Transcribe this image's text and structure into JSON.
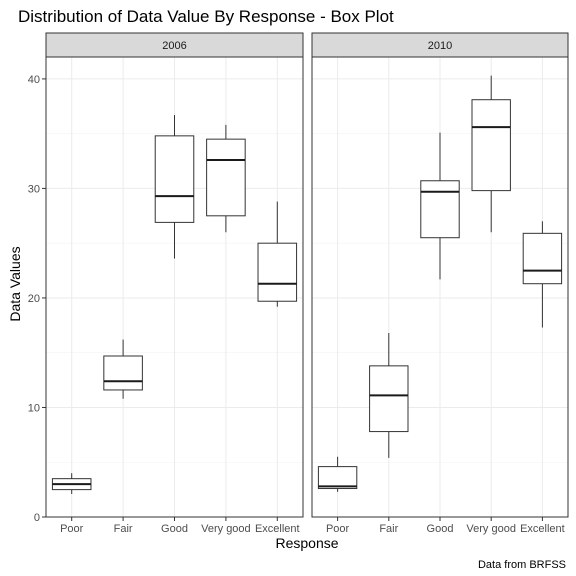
{
  "chart_data": {
    "type": "box",
    "title": "Distribution of Data Value By Response - Box Plot",
    "xlabel": "Response",
    "ylabel": "Data Values",
    "caption": "Data from BRFSS",
    "categories": [
      "Poor",
      "Fair",
      "Good",
      "Very good",
      "Excellent"
    ],
    "ylim": [
      0,
      42
    ],
    "yticks": [
      0,
      10,
      20,
      30,
      40
    ],
    "grid": true,
    "panels": [
      {
        "label": "2006",
        "boxes": [
          {
            "category": "Poor",
            "min": 2.1,
            "q1": 2.5,
            "median": 3.0,
            "q3": 3.5,
            "max": 4.0
          },
          {
            "category": "Fair",
            "min": 10.8,
            "q1": 11.6,
            "median": 12.4,
            "q3": 14.7,
            "max": 16.2
          },
          {
            "category": "Good",
            "min": 23.6,
            "q1": 26.9,
            "median": 29.3,
            "q3": 34.8,
            "max": 36.7
          },
          {
            "category": "Very good",
            "min": 26.0,
            "q1": 27.5,
            "median": 32.6,
            "q3": 34.5,
            "max": 35.8
          },
          {
            "category": "Excellent",
            "min": 19.2,
            "q1": 19.7,
            "median": 21.3,
            "q3": 25.0,
            "max": 28.8
          }
        ]
      },
      {
        "label": "2010",
        "boxes": [
          {
            "category": "Poor",
            "min": 2.3,
            "q1": 2.6,
            "median": 2.8,
            "q3": 4.6,
            "max": 5.5
          },
          {
            "category": "Fair",
            "min": 5.4,
            "q1": 7.8,
            "median": 11.1,
            "q3": 13.8,
            "max": 16.8
          },
          {
            "category": "Good",
            "min": 21.7,
            "q1": 25.5,
            "median": 29.7,
            "q3": 30.7,
            "max": 35.1
          },
          {
            "category": "Very good",
            "min": 26.0,
            "q1": 29.8,
            "median": 35.6,
            "q3": 38.1,
            "max": 40.3
          },
          {
            "category": "Excellent",
            "min": 17.3,
            "q1": 21.3,
            "median": 22.5,
            "q3": 25.9,
            "max": 27.0
          }
        ]
      }
    ]
  },
  "colors": {
    "strip_fill": "#d9d9d9",
    "grid": "#ebebeb",
    "line": "#333333",
    "tick_text": "#4d4d4d"
  }
}
